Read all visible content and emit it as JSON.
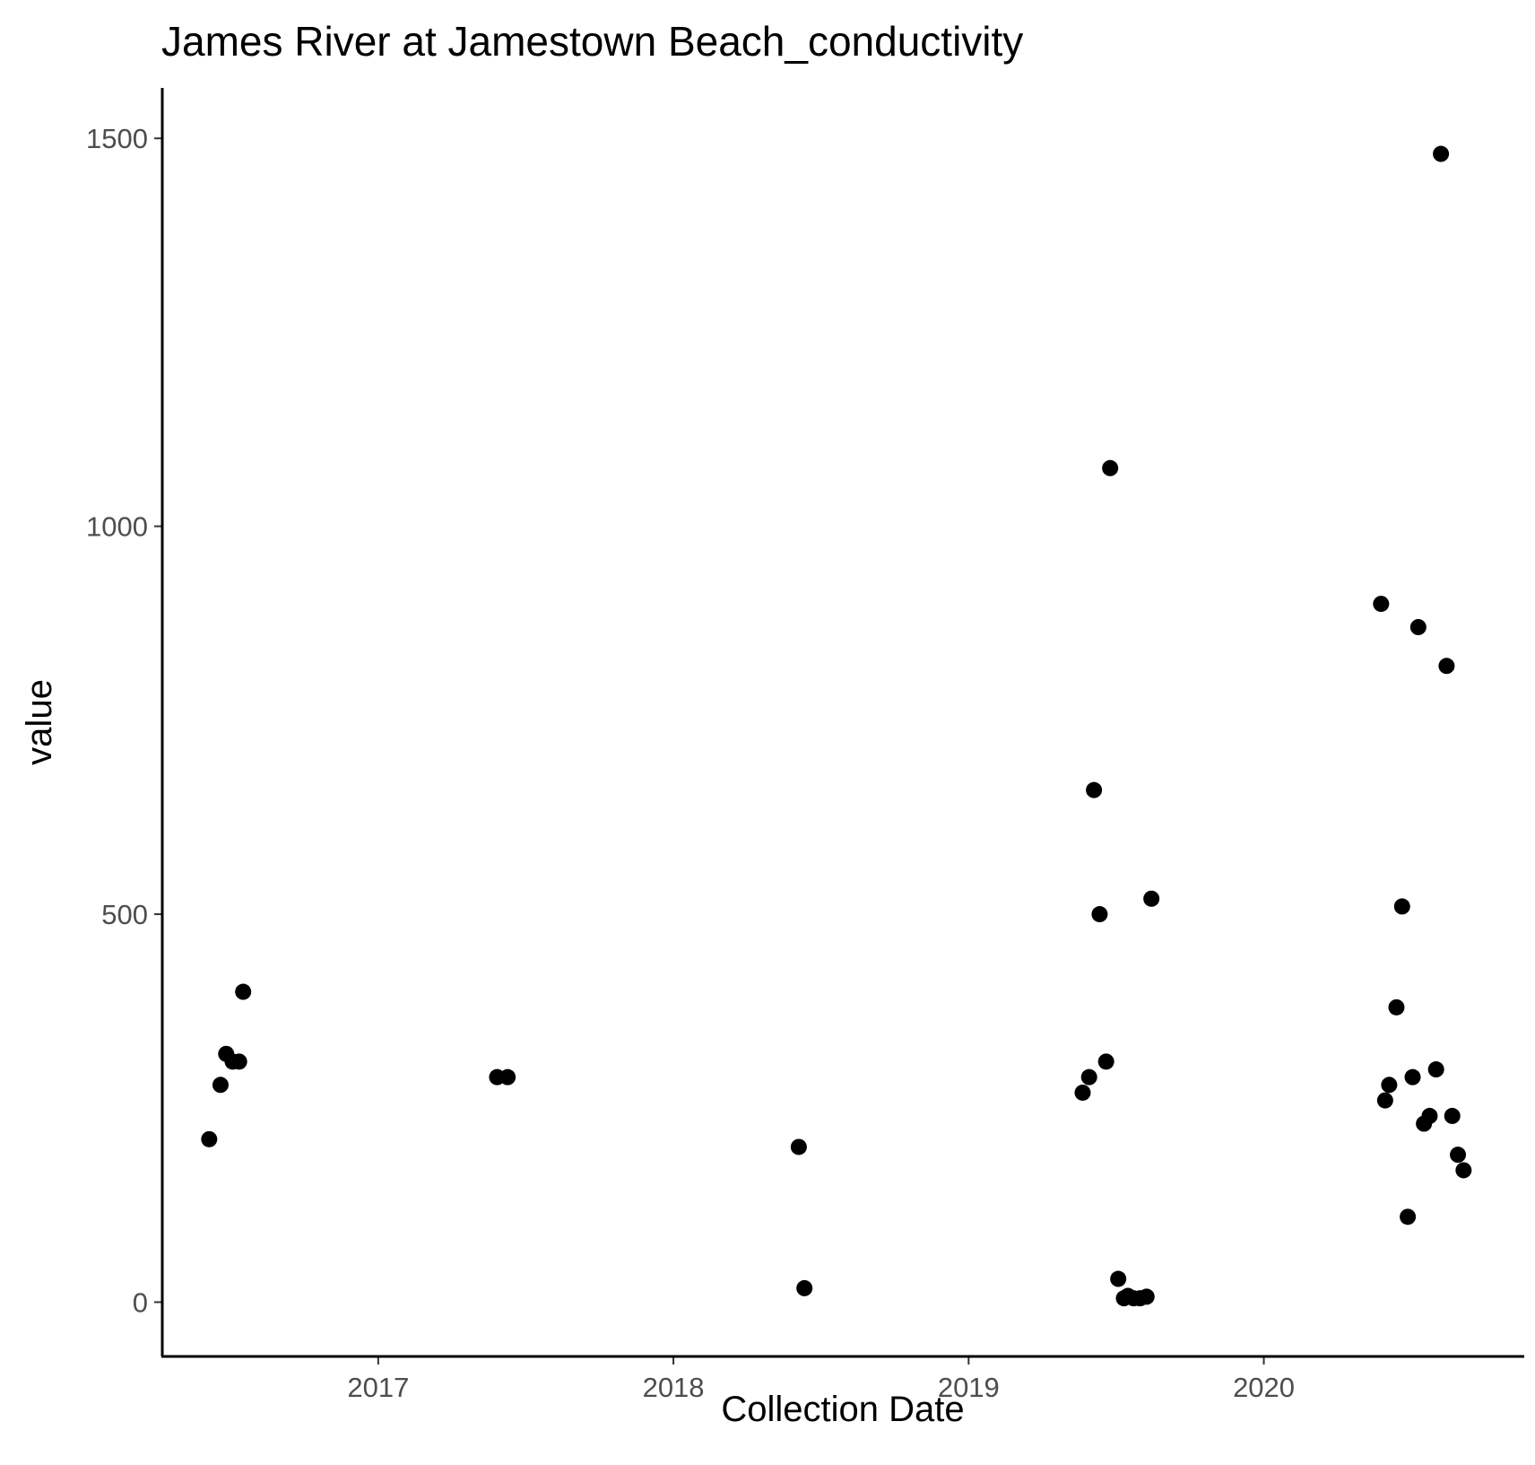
{
  "chart_data": {
    "type": "scatter",
    "title": "James River at Jamestown Beach_conductivity",
    "xlabel": "Collection Date",
    "ylabel": "value",
    "x_ticks": [
      "2017",
      "2018",
      "2019",
      "2020"
    ],
    "y_ticks": [
      "0",
      "500",
      "1000",
      "1500"
    ],
    "xlim": [
      "2016-04-09",
      "2020-11-18"
    ],
    "ylim": [
      -70,
      1565
    ],
    "grid": false,
    "legend": "none",
    "point_color": "#000000",
    "series": [
      {
        "points": [
          {
            "x": "2016-06-06",
            "y": 210
          },
          {
            "x": "2016-06-20",
            "y": 280
          },
          {
            "x": "2016-06-27",
            "y": 320
          },
          {
            "x": "2016-07-05",
            "y": 310
          },
          {
            "x": "2016-07-13",
            "y": 310
          },
          {
            "x": "2016-07-18",
            "y": 400
          },
          {
            "x": "2017-05-28",
            "y": 290
          },
          {
            "x": "2017-06-10",
            "y": 290
          },
          {
            "x": "2018-06-05",
            "y": 200
          },
          {
            "x": "2018-06-12",
            "y": 18
          },
          {
            "x": "2019-05-22",
            "y": 270
          },
          {
            "x": "2019-05-30",
            "y": 290
          },
          {
            "x": "2019-06-05",
            "y": 660
          },
          {
            "x": "2019-06-12",
            "y": 500
          },
          {
            "x": "2019-06-20",
            "y": 310
          },
          {
            "x": "2019-06-25",
            "y": 1075
          },
          {
            "x": "2019-07-05",
            "y": 30
          },
          {
            "x": "2019-07-12",
            "y": 5
          },
          {
            "x": "2019-07-17",
            "y": 8
          },
          {
            "x": "2019-07-24",
            "y": 5
          },
          {
            "x": "2019-08-01",
            "y": 5
          },
          {
            "x": "2019-08-09",
            "y": 7
          },
          {
            "x": "2019-08-15",
            "y": 520
          },
          {
            "x": "2020-05-25",
            "y": 900
          },
          {
            "x": "2020-05-30",
            "y": 260
          },
          {
            "x": "2020-06-04",
            "y": 280
          },
          {
            "x": "2020-06-13",
            "y": 380
          },
          {
            "x": "2020-06-20",
            "y": 510
          },
          {
            "x": "2020-06-27",
            "y": 110
          },
          {
            "x": "2020-07-03",
            "y": 290
          },
          {
            "x": "2020-07-10",
            "y": 870
          },
          {
            "x": "2020-07-17",
            "y": 230
          },
          {
            "x": "2020-07-24",
            "y": 240
          },
          {
            "x": "2020-08-01",
            "y": 300
          },
          {
            "x": "2020-08-07",
            "y": 1480
          },
          {
            "x": "2020-08-14",
            "y": 820
          },
          {
            "x": "2020-08-21",
            "y": 240
          },
          {
            "x": "2020-08-28",
            "y": 190
          },
          {
            "x": "2020-09-04",
            "y": 170
          }
        ]
      }
    ]
  }
}
